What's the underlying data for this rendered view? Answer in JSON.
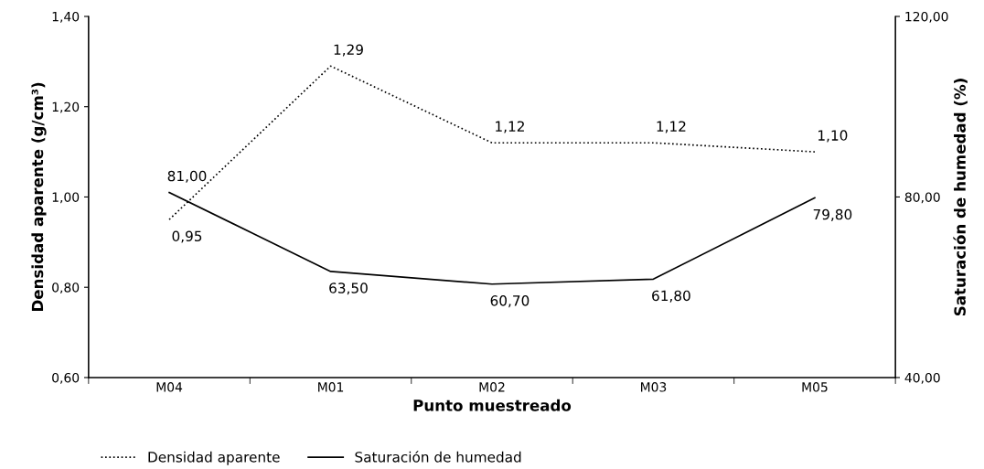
{
  "chart_data": {
    "type": "line",
    "xlabel": "Punto muestreado",
    "ylabel": "Densidad aparente (g/cm³)",
    "y2label": "Saturación de humedad (%)",
    "categories": [
      "M04",
      "M01",
      "M02",
      "M03",
      "M05"
    ],
    "series": [
      {
        "name": "Densidad aparente",
        "color": "#000000",
        "line_style": "dotted",
        "values": [
          0.95,
          1.29,
          1.12,
          1.12,
          1.1
        ],
        "value_labels": [
          "0,95",
          "1,29",
          "1,12",
          "1,12",
          "1,10"
        ]
      },
      {
        "name": "Saturación de humedad",
        "color": "#000000",
        "line_style": "solid",
        "axis": "y2",
        "values": [
          81.0,
          63.5,
          60.7,
          61.8,
          79.8
        ],
        "value_labels": [
          "81,00",
          "63,50",
          "60,70",
          "61,80",
          "79,80"
        ]
      }
    ],
    "ylim": [
      0.6,
      1.4
    ],
    "yticks": [
      {
        "value": 0.6,
        "label": "0,60"
      },
      {
        "value": 0.8,
        "label": "0,80"
      },
      {
        "value": 1.0,
        "label": "1,00"
      },
      {
        "value": 1.2,
        "label": "1,20"
      },
      {
        "value": 1.4,
        "label": "1,40"
      }
    ],
    "y2lim": [
      40,
      120
    ],
    "y2ticks": [
      {
        "value": 40,
        "label": "40,00"
      },
      {
        "value": 80,
        "label": "80,00"
      },
      {
        "value": 120,
        "label": "120,00"
      }
    ],
    "grid": false,
    "legend": "bottom left",
    "marker": "none"
  }
}
